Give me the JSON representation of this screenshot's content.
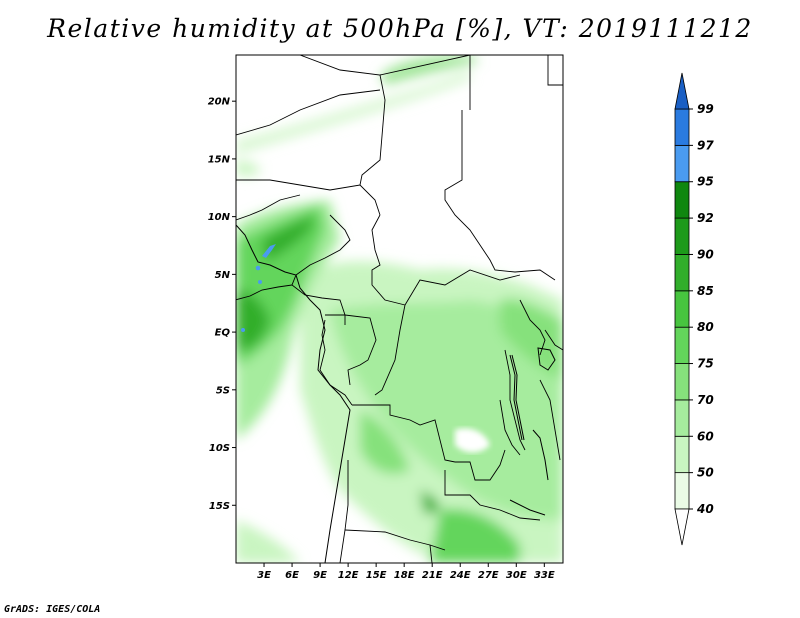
{
  "title": "Relative humidity at 500hPa [%], VT: 2019111212",
  "credit": "GrADS: IGES/COLA",
  "map": {
    "lat_range": [
      -20,
      24
    ],
    "lon_range": [
      0,
      35
    ],
    "lat_labels": [
      "20N",
      "15N",
      "10N",
      "5N",
      "EQ",
      "5S",
      "10S",
      "15S"
    ],
    "lon_labels": [
      "3E",
      "6E",
      "9E",
      "12E",
      "15E",
      "18E",
      "21E",
      "24E",
      "27E",
      "30E",
      "33E"
    ]
  },
  "colorbar": {
    "labels": [
      "40",
      "50",
      "60",
      "70",
      "75",
      "80",
      "85",
      "90",
      "92",
      "95",
      "97",
      "99"
    ],
    "colors": [
      "#ffffff",
      "#eafbe6",
      "#c9f5c1",
      "#a6ec9e",
      "#86e17c",
      "#63d55b",
      "#47c43f",
      "#31ae2b",
      "#1d9a1a",
      "#0f870f",
      "#4a9bf0",
      "#2a7be0",
      "#1a5fc4"
    ]
  }
}
